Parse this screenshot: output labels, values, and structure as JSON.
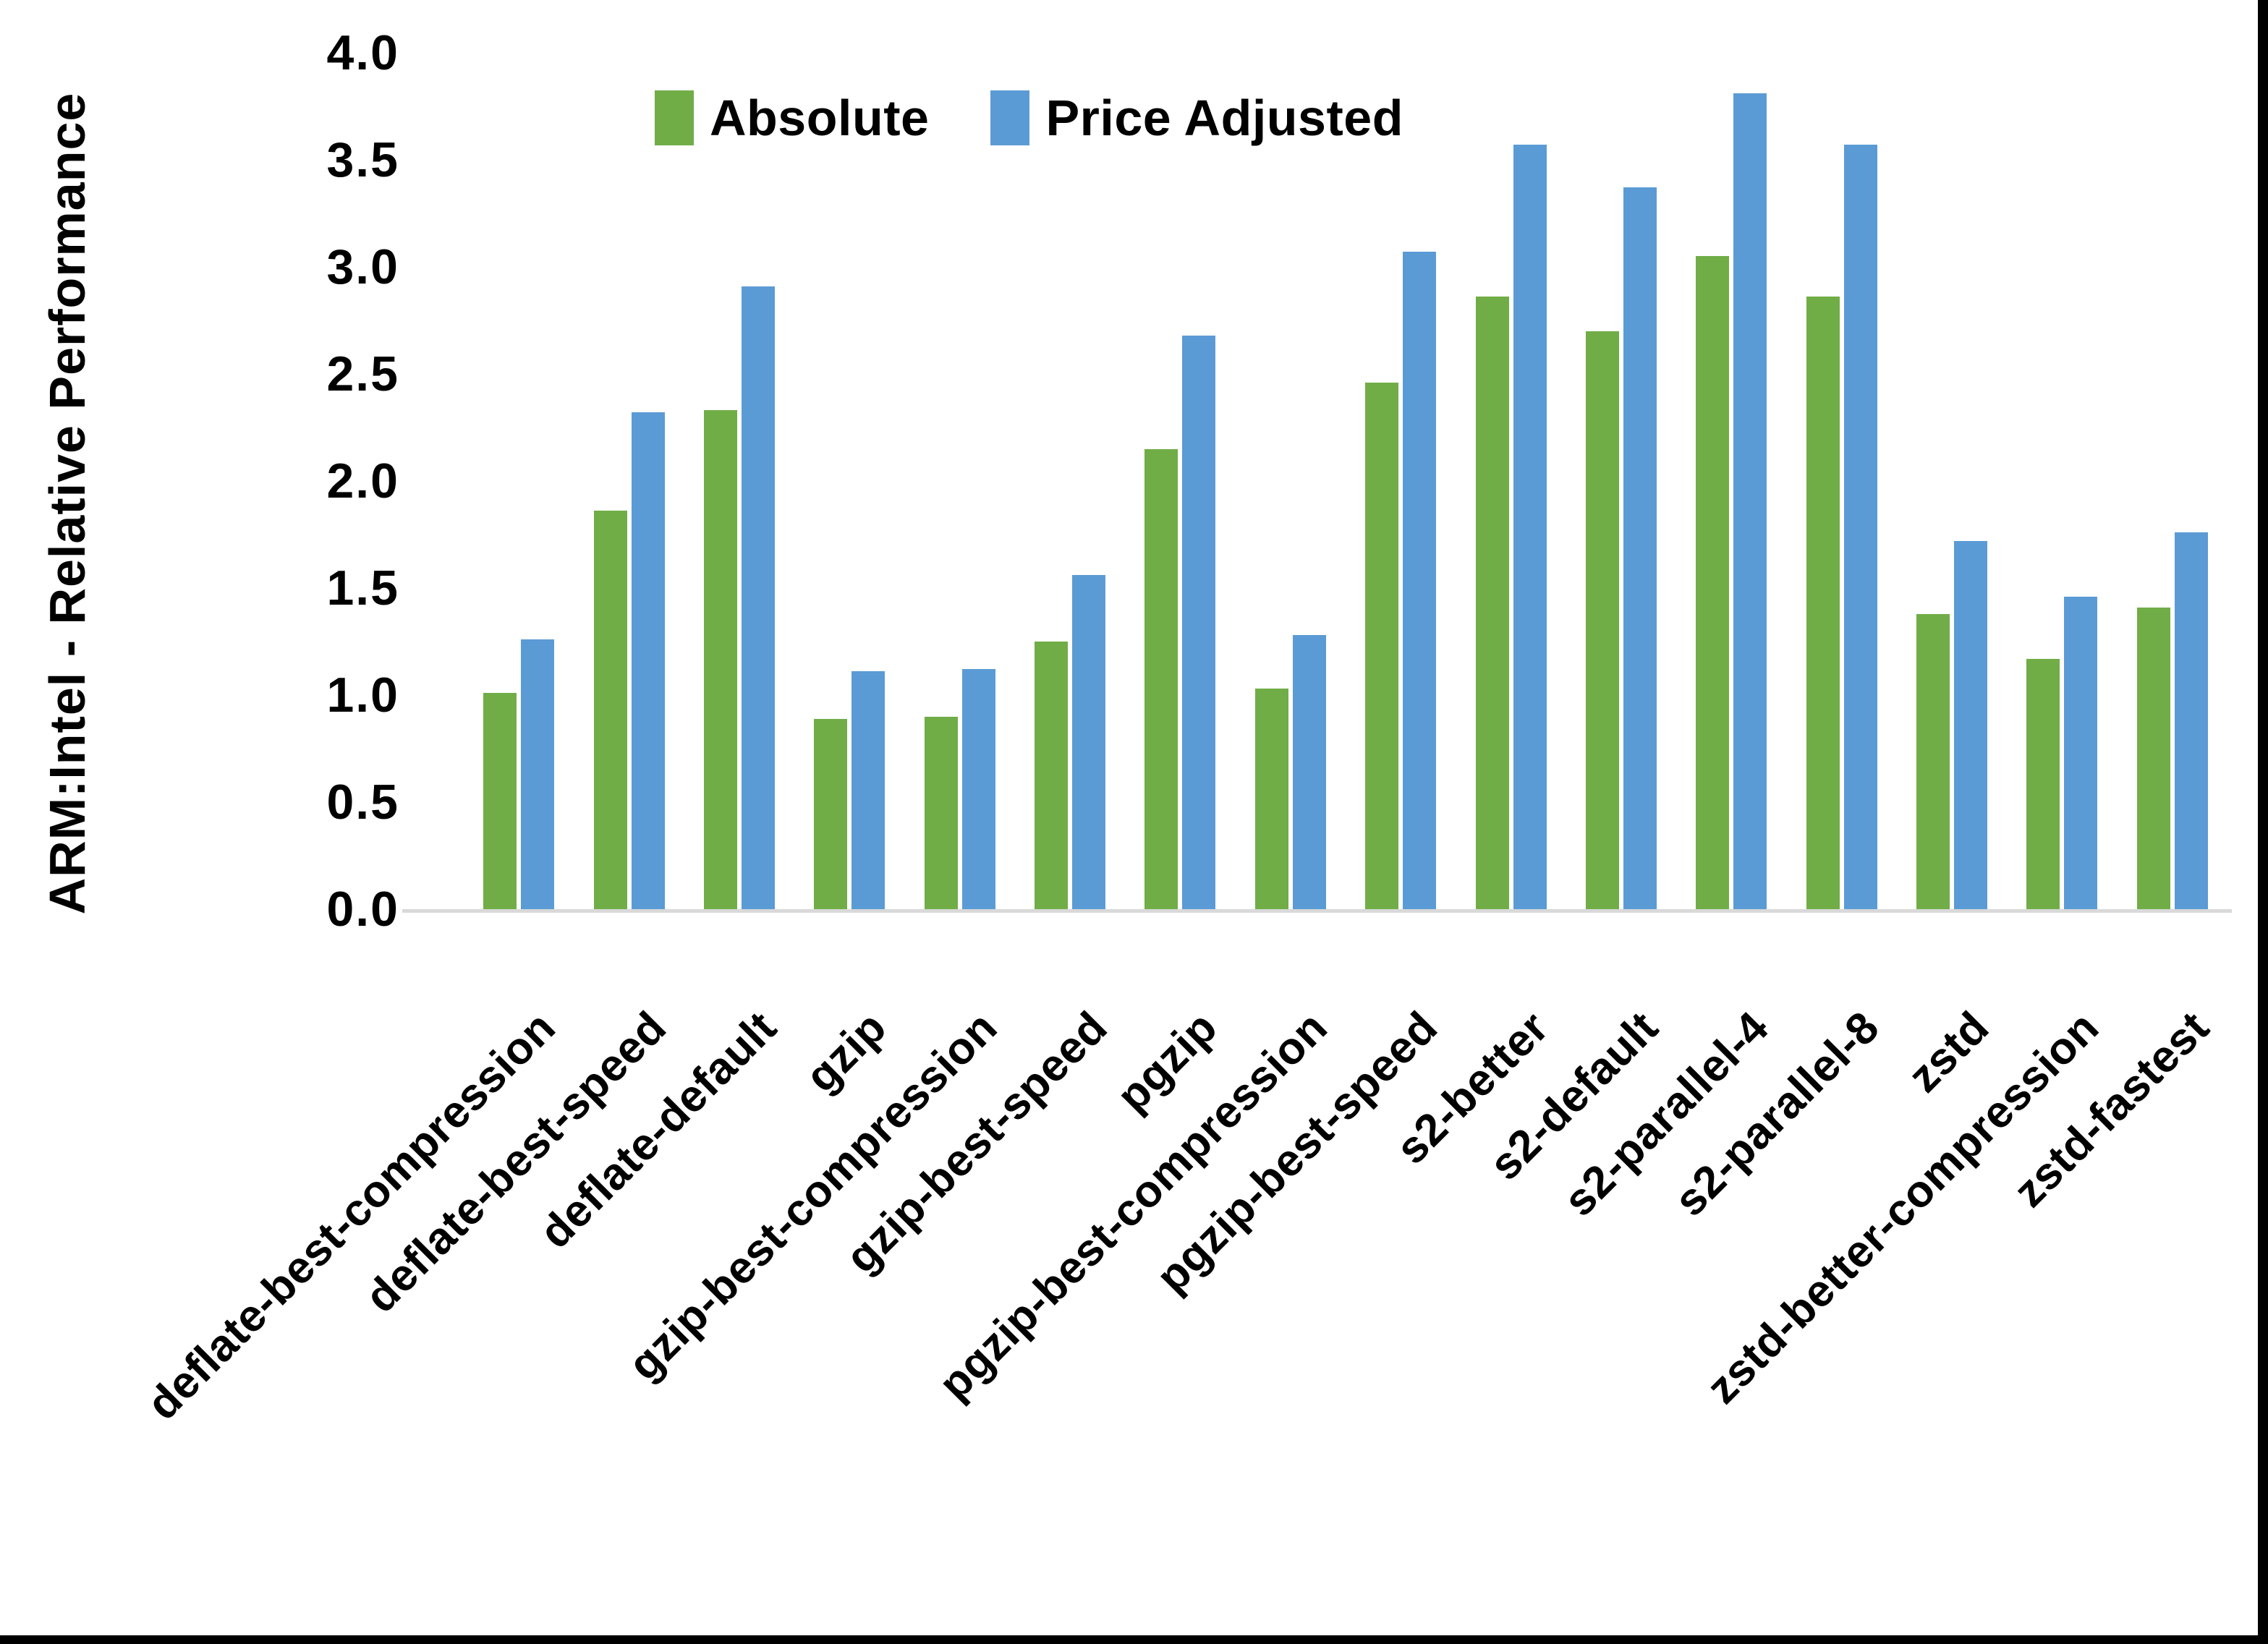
{
  "chart_data": {
    "type": "bar",
    "title": "",
    "ylabel": "ARM:Intel - Relative Performance",
    "xlabel": "",
    "ylim": [
      0.0,
      4.0
    ],
    "ytick_step": 0.5,
    "ytick_labels": [
      "0.0",
      "0.5",
      "1.0",
      "1.5",
      "2.0",
      "2.5",
      "3.0",
      "3.5",
      "4.0"
    ],
    "grid": false,
    "legend_position": "top-center",
    "categories": [
      "deflate-best-compression",
      "deflate-best-speed",
      "deflate-default",
      "gzip",
      "gzip-best-compression",
      "gzip-best-speed",
      "pgzip",
      "pgzip-best-compression",
      "pgzip-best-speed",
      "s2-better",
      "s2-default",
      "s2-parallel-4",
      "s2-parallel-8",
      "zstd",
      "zstd-better-compression",
      "zstd-fastest"
    ],
    "series": [
      {
        "name": "Absolute",
        "color": "#70AD47",
        "values": [
          1.01,
          1.86,
          2.33,
          0.89,
          0.9,
          1.25,
          2.15,
          1.03,
          2.46,
          2.86,
          2.7,
          3.05,
          2.86,
          1.38,
          1.17,
          1.41
        ]
      },
      {
        "name": "Price Adjusted",
        "color": "#5B9BD5",
        "values": [
          1.26,
          2.32,
          2.91,
          1.11,
          1.12,
          1.56,
          2.68,
          1.28,
          3.07,
          3.57,
          3.37,
          3.81,
          3.57,
          1.72,
          1.46,
          1.76
        ]
      }
    ],
    "axis_line_color": "#D9D9D9",
    "text_color": "#000000"
  },
  "frame": {
    "edge_color": "#000000",
    "background_color": "#FFFFFF"
  }
}
